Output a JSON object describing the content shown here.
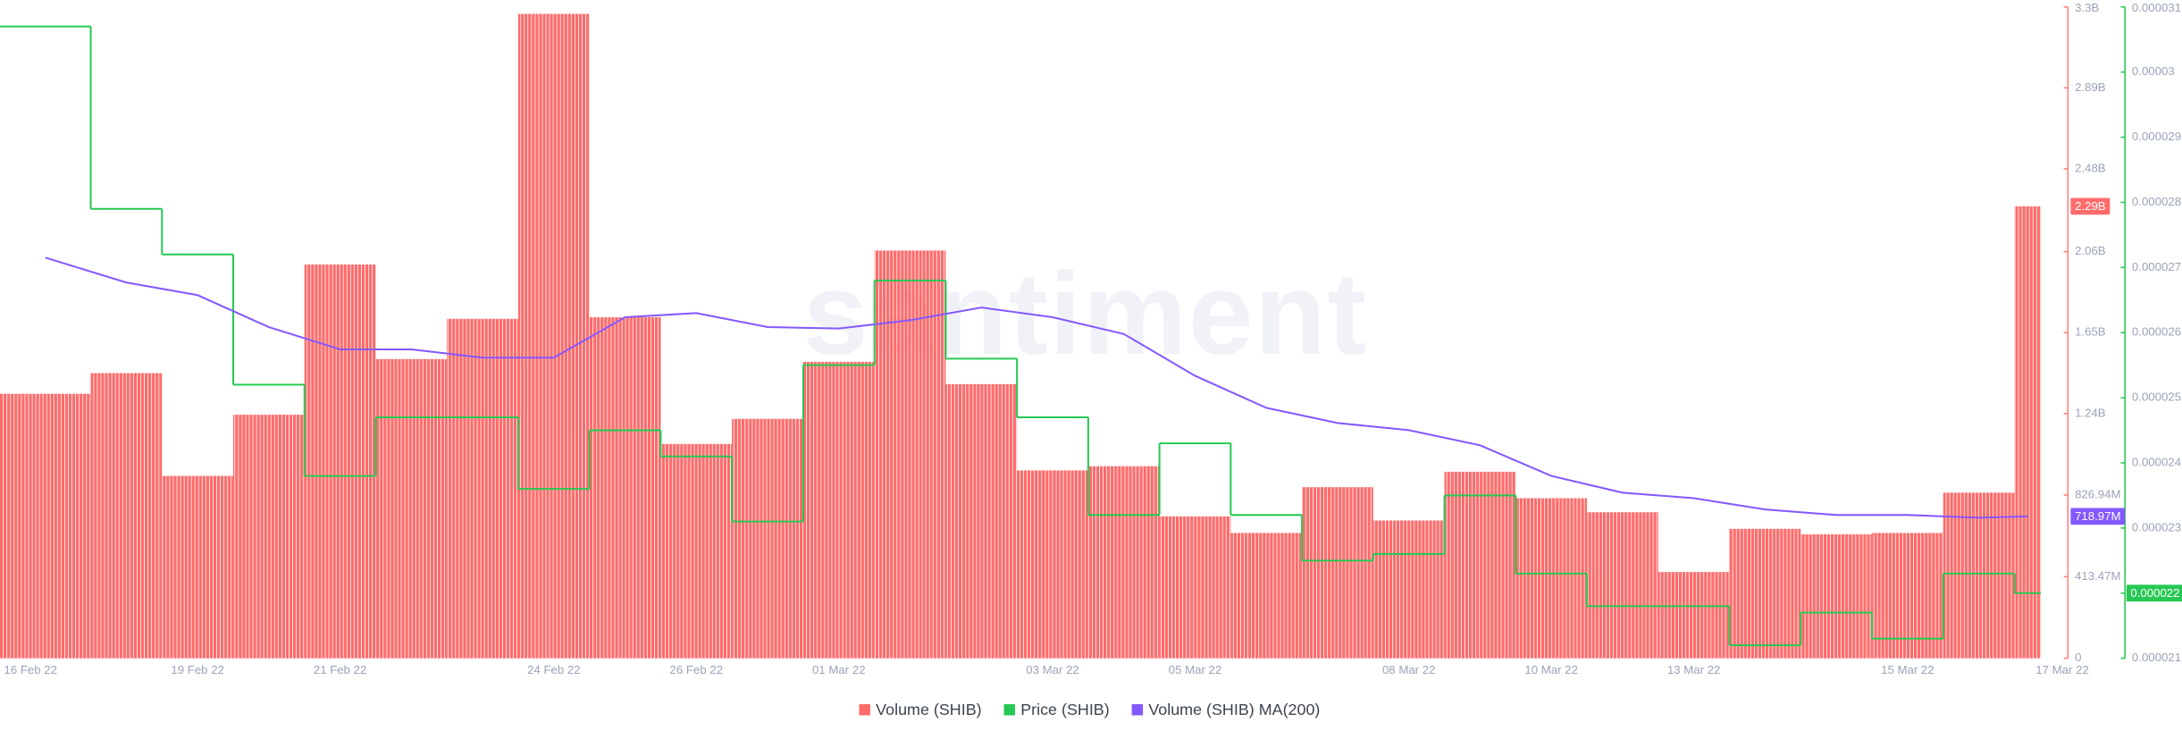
{
  "chart_data": {
    "type": "bar",
    "watermark": "santiment",
    "categories": [
      "16 Feb 22",
      null,
      "19 Feb 22",
      null,
      "21 Feb 22",
      null,
      null,
      "24 Feb 22",
      null,
      "26 Feb 22",
      null,
      "01 Mar 22",
      null,
      null,
      "03 Mar 22",
      null,
      "05 Mar 22",
      null,
      null,
      "08 Mar 22",
      null,
      "10 Mar 22",
      null,
      "13 Mar 22",
      null,
      null,
      "15 Mar 22",
      null,
      "17 Mar 22"
    ],
    "ylim": [
      0,
      3300000000
    ],
    "yticks": [
      0,
      {
        "value": 413470000,
        "label": "413.47M"
      },
      {
        "value": 826940000,
        "label": "826.94M"
      },
      {
        "value": 1240000000,
        "label": "1.24B"
      },
      {
        "value": 1650000000,
        "label": "1.65B"
      },
      {
        "value": 2060000000,
        "label": "2.06B"
      },
      {
        "value": 2480000000,
        "label": "2.48B"
      },
      {
        "value": 2890000000,
        "label": "2.89B"
      },
      {
        "value": 3300000000,
        "label": "3.3B"
      }
    ],
    "y2lim": [
      2.1e-05,
      3.1e-05
    ],
    "y2ticks": [
      2.1e-05,
      2.2e-05,
      2.3e-05,
      2.4e-05,
      2.5e-05,
      2.6e-05,
      2.7e-05,
      2.8e-05,
      2.9e-05,
      3e-05,
      3.1e-05
    ],
    "series": [
      {
        "name": "Volume (SHIB)",
        "type": "bar",
        "axis": "y",
        "color": "#ff6b6b",
        "values": [
          1340000000,
          1445000000,
          924000000,
          1234000000,
          1995000000,
          1516000000,
          1720000000,
          3265000000,
          1728000000,
          1086000000,
          1213000000,
          1502000000,
          2066000000,
          1389000000,
          952000000,
          973000000,
          719000000,
          635000000,
          867000000,
          698000000,
          945000000,
          811000000,
          740000000,
          437000000,
          656000000,
          628000000,
          635000000,
          839000000,
          2290000000
        ],
        "value_labels": [
          null,
          null,
          null,
          null,
          null,
          null,
          null,
          null,
          null,
          null,
          null,
          null,
          null,
          null,
          null,
          null,
          null,
          null,
          null,
          null,
          null,
          null,
          null,
          null,
          null,
          null,
          null,
          null,
          "2.29B"
        ]
      },
      {
        "name": "Price (SHIB)",
        "type": "step",
        "axis": "y2",
        "color": "#26c953",
        "values": [
          3.07e-05,
          2.79e-05,
          2.72e-05,
          2.52e-05,
          2.38e-05,
          2.47e-05,
          2.47e-05,
          2.36e-05,
          2.45e-05,
          2.41e-05,
          2.31e-05,
          2.55e-05,
          2.68e-05,
          2.56e-05,
          2.47e-05,
          2.32e-05,
          2.43e-05,
          2.32e-05,
          2.25e-05,
          2.26e-05,
          2.35e-05,
          2.23e-05,
          2.18e-05,
          2.18e-05,
          2.12e-05,
          2.17e-05,
          2.13e-05,
          2.23e-05,
          2.2e-05
        ],
        "value_labels": [
          null,
          null,
          null,
          null,
          null,
          null,
          null,
          null,
          null,
          null,
          null,
          null,
          null,
          null,
          null,
          null,
          null,
          null,
          null,
          null,
          null,
          null,
          null,
          null,
          null,
          null,
          null,
          null,
          "0.000022"
        ]
      },
      {
        "name": "Volume (SHIB) MA(200)",
        "type": "line",
        "axis": "y",
        "color": "#8358ff",
        "values": [
          2030000000,
          1904000000,
          1840000000,
          1678000000,
          1565000000,
          1565000000,
          1523000000,
          1523000000,
          1728000000,
          1749000000,
          1678000000,
          1671000000,
          1713000000,
          1777000000,
          1728000000,
          1643000000,
          1431000000,
          1269000000,
          1192000000,
          1156000000,
          1079000000,
          924000000,
          839000000,
          811000000,
          754000000,
          726000000,
          726000000,
          712000000,
          718970000
        ],
        "value_labels": [
          null,
          null,
          null,
          null,
          null,
          null,
          null,
          null,
          null,
          null,
          null,
          null,
          null,
          null,
          null,
          null,
          null,
          null,
          null,
          null,
          null,
          null,
          null,
          null,
          null,
          null,
          null,
          null,
          "718.97M"
        ]
      }
    ]
  }
}
